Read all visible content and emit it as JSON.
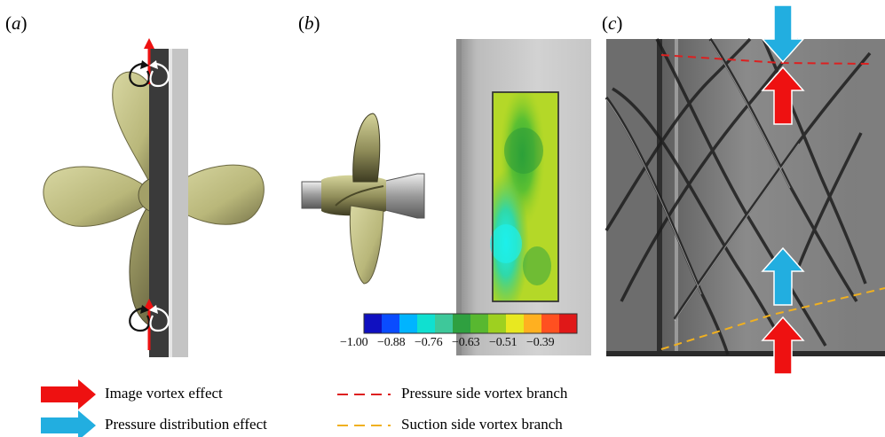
{
  "panels": {
    "a": "a",
    "b": "b",
    "c": "c"
  },
  "colorbar": {
    "ticks": [
      "−1.00",
      "−0.88",
      "−0.76",
      "−0.63",
      "−0.51",
      "−0.39"
    ],
    "colors": [
      "#1010c0",
      "#0a4cff",
      "#00b4ff",
      "#10e0d0",
      "#3ec89a",
      "#2fa040",
      "#58b830",
      "#9ed020",
      "#e8e820",
      "#ffb020",
      "#ff5020",
      "#e01818"
    ]
  },
  "legend": {
    "image_vortex": "Image vortex effect",
    "pressure_distribution": "Pressure distribution effect",
    "pressure_side": "Pressure side vortex branch",
    "suction_side": "Suction side vortex branch"
  },
  "colors": {
    "red_arrow": "#ee1111",
    "blue_arrow": "#22aee0",
    "pressure_line": "#dd2020",
    "suction_line": "#f0b020",
    "blade": "#c9c88a",
    "wall_dark": "#3a3a3a",
    "wall_light": "#c4c4c4"
  }
}
